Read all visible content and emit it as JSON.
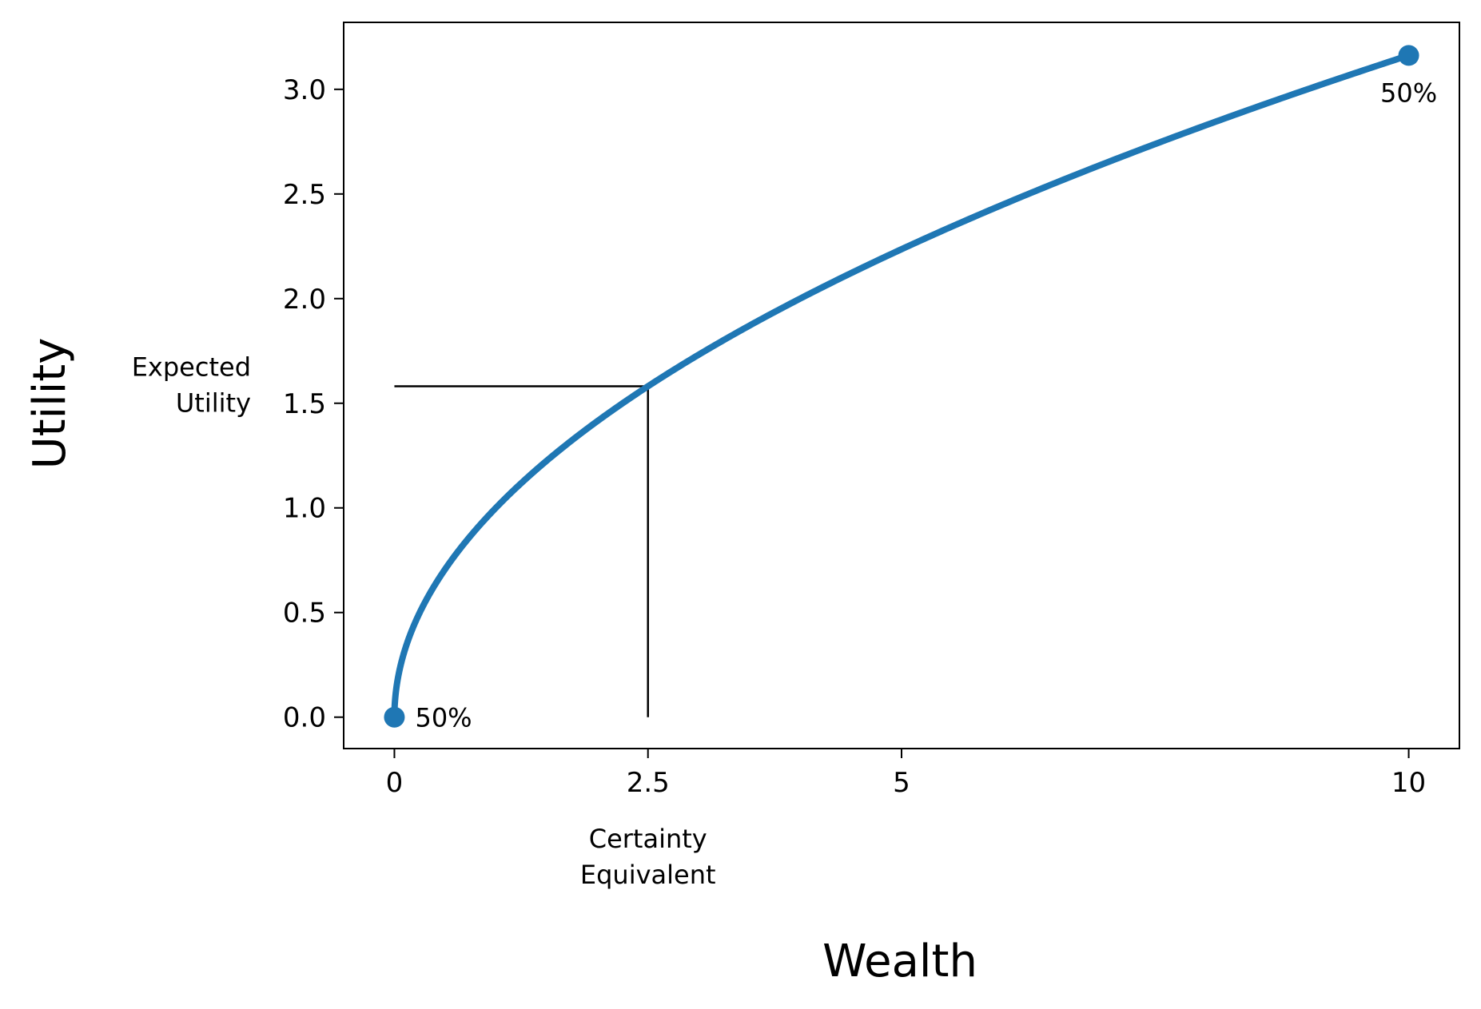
{
  "chart_data": {
    "type": "line",
    "xlabel": "Wealth",
    "ylabel": "Utility",
    "xlim": [
      -0.5,
      10.5
    ],
    "ylim": [
      -0.15,
      3.32
    ],
    "x_ticks": [
      {
        "value": 0,
        "label": "0"
      },
      {
        "value": 2.5,
        "label": "2.5"
      },
      {
        "value": 5,
        "label": "5"
      },
      {
        "value": 10,
        "label": "10"
      }
    ],
    "y_ticks": [
      {
        "value": 0.0,
        "label": "0.0"
      },
      {
        "value": 0.5,
        "label": "0.5"
      },
      {
        "value": 1.0,
        "label": "1.0"
      },
      {
        "value": 1.5,
        "label": "1.5"
      },
      {
        "value": 2.0,
        "label": "2.0"
      },
      {
        "value": 2.5,
        "label": "2.5"
      },
      {
        "value": 3.0,
        "label": "3.0"
      }
    ],
    "series": [
      {
        "function": "sqrt",
        "x_range": [
          0,
          10
        ],
        "color": "#1f77b4"
      }
    ],
    "endpoints": [
      {
        "x": 0,
        "y": 0.0,
        "label": "50%"
      },
      {
        "x": 10,
        "y": 3.162,
        "label": "50%"
      }
    ],
    "certainty_equivalent": {
      "x": 2.5,
      "y": 1.581,
      "x_label": [
        "Certainty",
        "Equivalent"
      ],
      "y_label": [
        "Expected",
        "Utility"
      ]
    },
    "grid": false,
    "legend": "none"
  }
}
